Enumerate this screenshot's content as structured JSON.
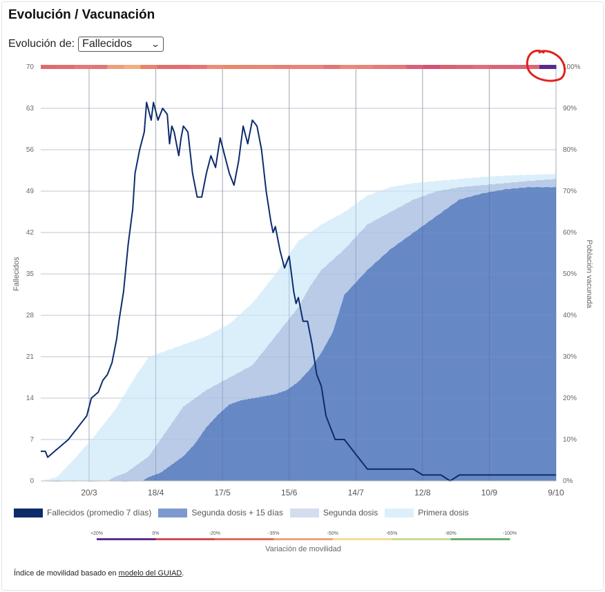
{
  "header": {
    "title": "Evolución / Vacunación"
  },
  "selector": {
    "label": "Evolución de:",
    "value": "Fallecidos"
  },
  "colors": {
    "deaths": "#0d2b6b",
    "second_dose_15": "#6688c5",
    "second_dose": "#b9cbe7",
    "first_dose": "#dbeffb",
    "grid": "#d0d0d0",
    "annotation": "#e0201e"
  },
  "chart_data": {
    "type": "line",
    "x_ticks": [
      "20/3",
      "18/4",
      "17/5",
      "15/6",
      "14/7",
      "12/8",
      "10/9",
      "9/10"
    ],
    "ylabel": "Fallecidos",
    "y2label": "Población vacunada",
    "ylim": [
      0,
      70
    ],
    "y_ticks": [
      "0",
      "7",
      "14",
      "21",
      "28",
      "35",
      "42",
      "49",
      "56",
      "63",
      "70"
    ],
    "y2lim": [
      0,
      100
    ],
    "y2_ticks": [
      "0%",
      "10%",
      "20%",
      "30%",
      "40%",
      "50%",
      "60%",
      "70%",
      "80%",
      "90%",
      "100%"
    ],
    "grid": true,
    "x_range_days": [
      0,
      224
    ],
    "series": [
      {
        "name": "Primera dosis",
        "axis": "right",
        "x": [
          0,
          7,
          14,
          22,
          32,
          42,
          47,
          52,
          62,
          72,
          82,
          92,
          102,
          112,
          122,
          132,
          142,
          152,
          162,
          172,
          182,
          192,
          202,
          212,
          224
        ],
        "values": [
          0,
          1,
          5,
          10,
          17,
          26,
          30,
          31,
          33,
          35,
          38,
          43,
          50,
          58,
          62,
          65,
          69,
          71,
          72,
          72.5,
          73,
          73.5,
          73.8,
          74,
          74.2
        ]
      },
      {
        "name": "Segunda dosis",
        "axis": "right",
        "x": [
          0,
          29,
          32,
          37,
          42,
          47,
          52,
          57,
          62,
          67,
          72,
          82,
          92,
          102,
          112,
          117,
          122,
          132,
          142,
          152,
          162,
          172,
          182,
          192,
          202,
          212,
          224
        ],
        "values": [
          0,
          0,
          1,
          2,
          4,
          6,
          10,
          14,
          18,
          20,
          22,
          25,
          28,
          35,
          42,
          47,
          51,
          56,
          62,
          65,
          68,
          70,
          71,
          71.5,
          72,
          72.5,
          73
        ]
      },
      {
        "name": "Segunda dosis + 15 días",
        "axis": "right",
        "x": [
          0,
          44,
          47,
          52,
          57,
          62,
          67,
          72,
          77,
          82,
          87,
          92,
          97,
          102,
          107,
          112,
          117,
          122,
          127,
          132,
          142,
          152,
          162,
          172,
          182,
          192,
          202,
          212,
          224
        ],
        "values": [
          0,
          0,
          1,
          2,
          4,
          6,
          9,
          13,
          16,
          18.5,
          19.5,
          20,
          20.5,
          21,
          22,
          24,
          27,
          31,
          36,
          45,
          51,
          56,
          60,
          64,
          68,
          69.5,
          70.5,
          71,
          71
        ]
      },
      {
        "name": "Fallecidos (promedio 7 días)",
        "axis": "left",
        "x": [
          0,
          2,
          3,
          6,
          9,
          12,
          14,
          16,
          18,
          20,
          22,
          25,
          27,
          29,
          31,
          33,
          34,
          36,
          38,
          40,
          41,
          43,
          45,
          46,
          48,
          49,
          51,
          53,
          55,
          56,
          57,
          58,
          60,
          61,
          62,
          64,
          66,
          68,
          70,
          72,
          74,
          76,
          78,
          80,
          82,
          84,
          86,
          88,
          90,
          92,
          94,
          96,
          98,
          100,
          101,
          102,
          104,
          106,
          108,
          110,
          111,
          112,
          114,
          116,
          118,
          120,
          122,
          124,
          126,
          128,
          130,
          132,
          134,
          136,
          138,
          140,
          142,
          146,
          150,
          154,
          158,
          162,
          166,
          170,
          174,
          178,
          182,
          186,
          190,
          194,
          198,
          202,
          206,
          210,
          214,
          218,
          224
        ],
        "values": [
          5,
          5,
          4,
          5,
          6,
          7,
          8,
          9,
          10,
          11,
          14,
          15,
          17,
          18,
          20,
          24,
          27,
          32,
          40,
          46,
          52,
          56,
          59,
          64,
          61,
          64,
          61,
          63,
          62,
          57,
          60,
          59,
          55,
          58,
          60,
          59,
          52,
          48,
          48,
          52,
          55,
          53,
          58,
          55,
          52,
          50,
          54,
          60,
          57,
          61,
          60,
          56,
          49,
          44,
          42,
          43,
          39,
          36,
          38,
          32,
          30,
          31,
          27,
          27,
          23,
          18,
          16,
          11,
          9,
          7,
          7,
          7,
          6,
          5,
          4,
          3,
          2,
          2,
          2,
          2,
          2,
          2,
          1,
          1,
          1,
          0,
          1,
          1,
          1,
          1,
          1,
          1,
          1,
          1,
          1,
          1,
          1
        ]
      }
    ],
    "mobility_scale": {
      "title": "Variación de movilidad",
      "labels": [
        "+20%",
        "0%",
        "-20%",
        "-35%",
        "-50%",
        "-65%",
        "-80%",
        "-100%"
      ],
      "colors": [
        "#5b2e8c",
        "#d54a52",
        "#df6b5d",
        "#eca17a",
        "#f5dc97",
        "#c7dc93",
        "#6aae6f"
      ]
    },
    "mobility_strip": [
      "#de6a6d",
      "#e06e6d",
      "#e2797a",
      "#e0767a",
      "#ed9f7e",
      "#f0b07f",
      "#e8836e",
      "#e06f6c",
      "#e56c6f",
      "#e57574",
      "#eb8d78",
      "#e9896f",
      "#e58972",
      "#e98874",
      "#e48177",
      "#e88477",
      "#e7857a",
      "#e37579",
      "#e8897a",
      "#e7847b",
      "#e47b79",
      "#e47778",
      "#d76179",
      "#d35275",
      "#d76174",
      "#dc6476",
      "#dd6f78",
      "#da6378",
      "#dc6477",
      "#dc6678",
      "#5a2a8c"
    ]
  },
  "legend": [
    {
      "label": "Fallecidos (promedio 7 días)",
      "color": "#0d2b6b"
    },
    {
      "label": "Segunda dosis + 15 días",
      "color": "#7e99cf"
    },
    {
      "label": "Segunda dosis",
      "color": "#d3ddef"
    },
    {
      "label": "Primera dosis",
      "color": "#dcf0fb"
    }
  ],
  "footnote": {
    "prefix": "Índice de movilidad basado en ",
    "link": "modelo del GUIAD",
    "suffix": "."
  }
}
